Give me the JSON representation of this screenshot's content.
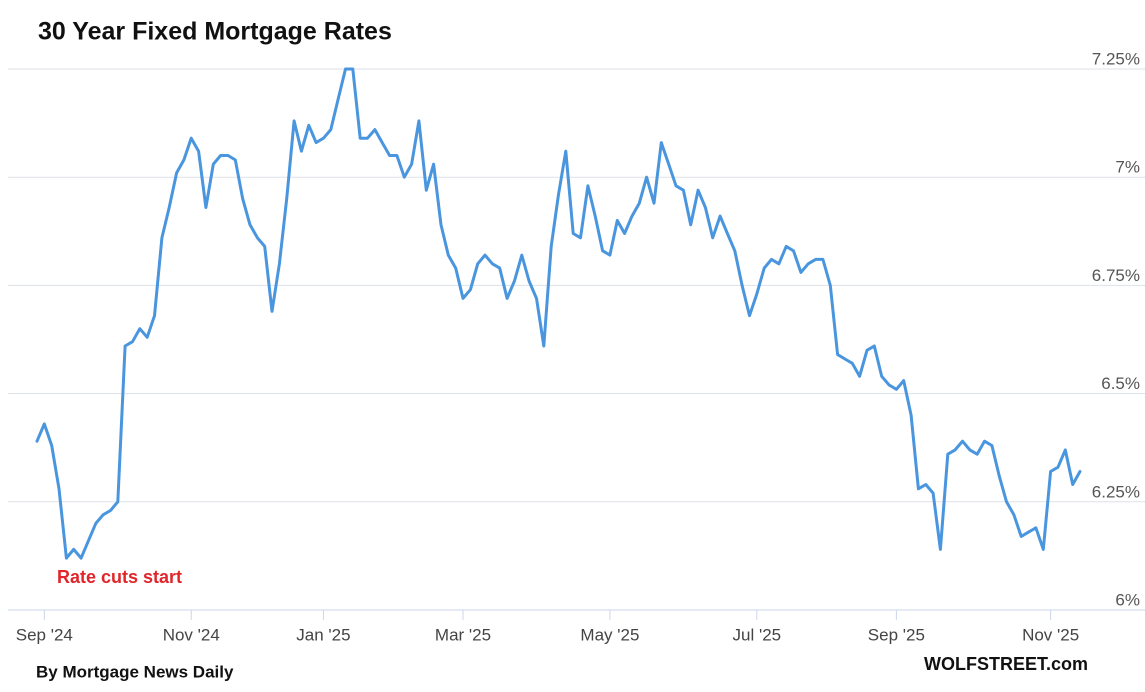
{
  "chart_data": {
    "type": "line",
    "title": "30 Year Fixed Mortgage Rates",
    "annotation": "Rate cuts start",
    "source": "By Mortgage News Daily",
    "credit": "WOLFSTREET.com",
    "categories": [
      null,
      "Sep '24",
      null,
      null,
      null,
      null,
      null,
      null,
      null,
      null,
      null,
      null,
      null,
      null,
      null,
      null,
      null,
      null,
      null,
      null,
      null,
      "Nov '24",
      null,
      null,
      null,
      null,
      null,
      null,
      null,
      null,
      null,
      null,
      null,
      null,
      null,
      null,
      null,
      null,
      null,
      "Jan '25",
      null,
      null,
      null,
      null,
      null,
      null,
      null,
      null,
      null,
      null,
      null,
      null,
      null,
      null,
      null,
      null,
      null,
      null,
      "Mar '25",
      null,
      null,
      null,
      null,
      null,
      null,
      null,
      null,
      null,
      null,
      null,
      null,
      null,
      null,
      null,
      null,
      null,
      null,
      null,
      "May '25",
      null,
      null,
      null,
      null,
      null,
      null,
      null,
      null,
      null,
      null,
      null,
      null,
      null,
      null,
      null,
      null,
      null,
      null,
      null,
      "Jul '25",
      null,
      null,
      null,
      null,
      null,
      null,
      null,
      null,
      null,
      null,
      null,
      null,
      null,
      null,
      null,
      null,
      null,
      null,
      "Sep '25",
      null,
      null,
      null,
      null,
      null,
      null,
      null,
      null,
      null,
      null,
      null,
      null,
      null,
      null,
      null,
      null,
      null,
      null,
      null,
      null,
      "Nov '25",
      null,
      null,
      null,
      null
    ],
    "series": [
      {
        "name": "30 Year Fixed",
        "color": "#4a96de",
        "values": [
          6.39,
          6.43,
          6.38,
          6.28,
          6.12,
          6.14,
          6.12,
          6.16,
          6.2,
          6.22,
          6.23,
          6.25,
          6.61,
          6.62,
          6.65,
          6.63,
          6.68,
          6.86,
          6.93,
          7.01,
          7.04,
          7.09,
          7.06,
          6.93,
          7.03,
          7.05,
          7.05,
          7.04,
          6.95,
          6.89,
          6.86,
          6.84,
          6.69,
          6.8,
          6.95,
          7.13,
          7.06,
          7.12,
          7.08,
          7.09,
          7.11,
          7.18,
          7.25,
          7.25,
          7.09,
          7.09,
          7.11,
          7.08,
          7.05,
          7.05,
          7.0,
          7.03,
          7.13,
          6.97,
          7.03,
          6.89,
          6.82,
          6.79,
          6.72,
          6.74,
          6.8,
          6.82,
          6.8,
          6.79,
          6.72,
          6.76,
          6.82,
          6.76,
          6.72,
          6.61,
          6.84,
          6.96,
          7.06,
          6.87,
          6.86,
          6.98,
          6.91,
          6.83,
          6.82,
          6.9,
          6.87,
          6.91,
          6.94,
          7.0,
          6.94,
          7.08,
          7.03,
          6.98,
          6.97,
          6.89,
          6.97,
          6.93,
          6.86,
          6.91,
          6.87,
          6.83,
          6.75,
          6.68,
          6.73,
          6.79,
          6.81,
          6.8,
          6.84,
          6.83,
          6.78,
          6.8,
          6.81,
          6.81,
          6.75,
          6.59,
          6.58,
          6.57,
          6.54,
          6.6,
          6.61,
          6.54,
          6.52,
          6.51,
          6.53,
          6.45,
          6.28,
          6.29,
          6.27,
          6.14,
          6.36,
          6.37,
          6.39,
          6.37,
          6.36,
          6.39,
          6.38,
          6.31,
          6.25,
          6.22,
          6.17,
          6.18,
          6.19,
          6.14,
          6.32,
          6.33,
          6.37,
          6.29,
          6.32
        ]
      }
    ],
    "ylim": [
      6,
      7.28
    ],
    "yticks": [
      {
        "value": 6,
        "label": "6%"
      },
      {
        "value": 6.25,
        "label": "6.25%"
      },
      {
        "value": 6.5,
        "label": "6.5%"
      },
      {
        "value": 6.75,
        "label": "6.75%"
      },
      {
        "value": 7,
        "label": "7%"
      },
      {
        "value": 7.25,
        "label": "7.25%"
      }
    ],
    "grid": true
  }
}
